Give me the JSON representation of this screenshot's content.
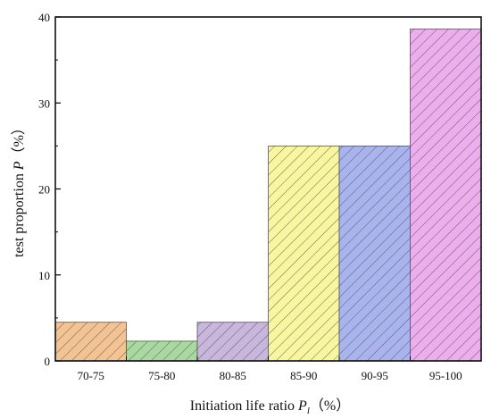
{
  "chart_data": {
    "type": "bar",
    "categories": [
      "70-75",
      "75-80",
      "80-85",
      "85-90",
      "90-95",
      "95-100"
    ],
    "values": [
      4.5,
      2.3,
      4.5,
      25.0,
      25.0,
      38.6
    ],
    "bar_colors": [
      "#f3c393",
      "#a9d9a0",
      "#c8b6dc",
      "#f8f7a0",
      "#a9b3ee",
      "#ecaeec"
    ],
    "hatch_color": "#555555",
    "ylim": [
      0,
      40
    ],
    "yticks": [
      0,
      10,
      20,
      30,
      40
    ],
    "xlabel": {
      "text": "Initiation life ratio ",
      "symbol": "P",
      "subscript": "l",
      "unit": "（%）"
    },
    "ylabel": {
      "text": "test proportion ",
      "symbol": "P",
      "unit": "（%）"
    },
    "grid": false
  }
}
